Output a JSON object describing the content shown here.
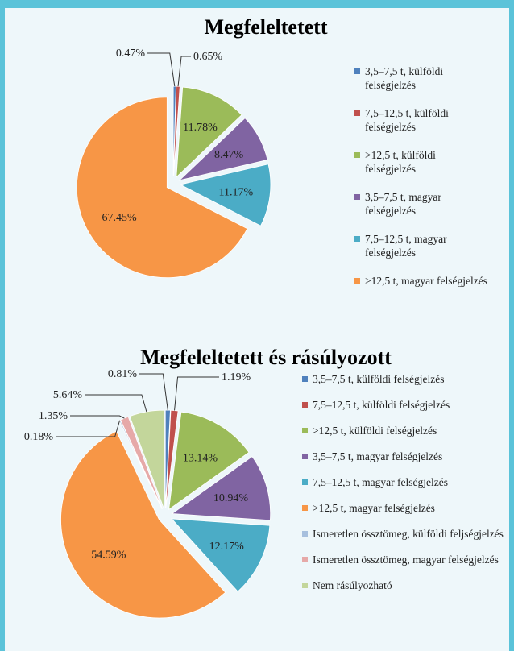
{
  "chart_data": [
    {
      "type": "pie",
      "title": "Megfeleltetett",
      "categories": [
        "3,5–7,5 t, külföldi felségjelzés",
        "7,5–12,5 t, külföldi felségjelzés",
        ">12,5 t, külföldi felségjelzés",
        "3,5–7,5 t, magyar felségjelzés",
        "7,5–12,5 t, magyar felségjelzés",
        ">12,5 t, magyar felségjelzés"
      ],
      "values": [
        0.47,
        0.65,
        11.78,
        8.47,
        11.17,
        67.45
      ],
      "value_labels": [
        "0.47%",
        "0.65%",
        "11.78%",
        "8.47%",
        "11.17%",
        "67.45%"
      ],
      "colors": [
        "#4f81bd",
        "#c0504d",
        "#9bbb59",
        "#8064a2",
        "#4bacc6",
        "#f79646"
      ]
    },
    {
      "type": "pie",
      "title": "Megfeleltetett és rásúlyozott",
      "categories": [
        "3,5–7,5 t, külföldi felségjelzés",
        "7,5–12,5 t, külföldi felségjelzés",
        ">12,5 t, külföldi felségjelzés",
        "3,5–7,5 t, magyar felségjelzés",
        "7,5–12,5 t, magyar felségjelzés",
        ">12,5 t, magyar felségjelzés",
        "Ismeretlen össztömeg, külföldi feljségjelzés",
        "Ismeretlen össztömeg, magyar felségjelzés",
        "Nem rásúlyozható"
      ],
      "values": [
        0.81,
        1.19,
        13.14,
        10.94,
        12.17,
        54.59,
        0.18,
        1.35,
        5.64
      ],
      "value_labels": [
        "0.81%",
        "1.19%",
        "13.14%",
        "10.94%",
        "12.17%",
        "54.59%",
        "0.18%",
        "1.35%",
        "5.64%"
      ],
      "colors": [
        "#4f81bd",
        "#c0504d",
        "#9bbb59",
        "#8064a2",
        "#4bacc6",
        "#f79646",
        "#a7c0de",
        "#e6a9a8",
        "#c3d69b"
      ]
    }
  ]
}
